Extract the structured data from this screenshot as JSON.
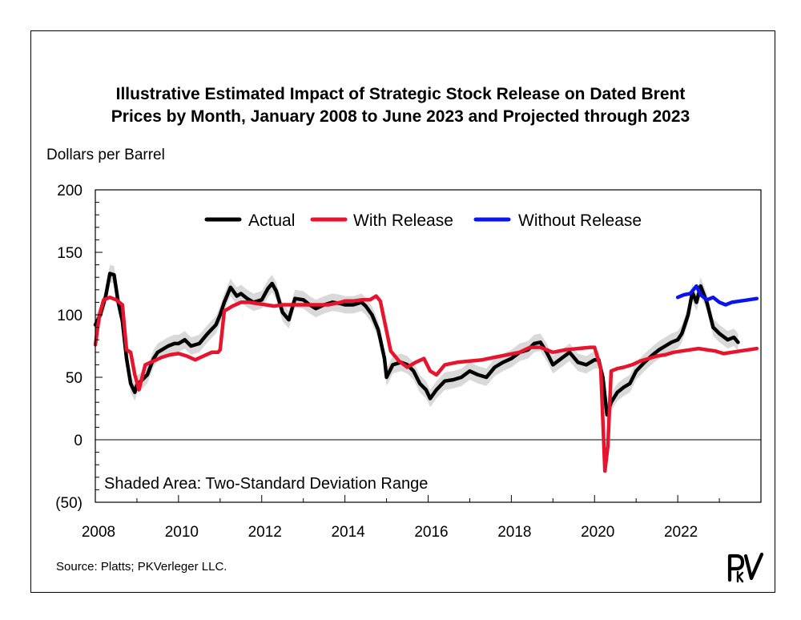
{
  "title_line1": "Illustrative Estimated Impact of Strategic Stock Release on Dated Brent",
  "title_line2": "Prices by Month, January 2008 to June 2023 and Projected through 2023",
  "source": "Source: Platts; PKVerleger LLC.",
  "logo_text": "PkV",
  "colors": {
    "actual": "#000000",
    "with_release": "#e8142e",
    "without_release": "#0a14ee",
    "band": "#d9d9d9"
  },
  "chart_data": {
    "type": "line",
    "ylabel": "Dollars per Barrel",
    "xlabel": "",
    "xlim": [
      2008.0,
      2024.0
    ],
    "ylim": [
      -50,
      200
    ],
    "y_ticks": [
      200,
      150,
      100,
      50,
      0,
      -50
    ],
    "y_tick_labels": [
      "200",
      "150",
      "100",
      "50",
      "0",
      "(50)"
    ],
    "x_ticks": [
      2008,
      2010,
      2012,
      2014,
      2016,
      2018,
      2020,
      2022
    ],
    "x_tick_labels": [
      "2008",
      "2010",
      "2012",
      "2014",
      "2016",
      "2018",
      "2020",
      "2022"
    ],
    "grid": false,
    "zero_line": true,
    "legend": {
      "placement": "top",
      "entries": [
        "Actual",
        "With Release",
        "Without Release"
      ]
    },
    "annotation": "Shaded Area: Two-Standard Deviation Range",
    "band_halfwidth": 7,
    "series": [
      {
        "name": "Actual",
        "x": [
          2008.0,
          2008.12,
          2008.25,
          2008.35,
          2008.45,
          2008.55,
          2008.65,
          2008.75,
          2008.85,
          2008.95,
          2009.0,
          2009.1,
          2009.25,
          2009.4,
          2009.5,
          2009.6,
          2009.75,
          2009.9,
          2010.0,
          2010.15,
          2010.3,
          2010.5,
          2010.7,
          2010.9,
          2011.0,
          2011.1,
          2011.25,
          2011.4,
          2011.5,
          2011.65,
          2011.8,
          2012.0,
          2012.15,
          2012.25,
          2012.35,
          2012.5,
          2012.65,
          2012.8,
          2013.0,
          2013.15,
          2013.3,
          2013.5,
          2013.7,
          2013.9,
          2014.0,
          2014.2,
          2014.4,
          2014.5,
          2014.65,
          2014.8,
          2014.95,
          2015.0,
          2015.15,
          2015.35,
          2015.5,
          2015.65,
          2015.8,
          2015.95,
          2016.05,
          2016.2,
          2016.4,
          2016.6,
          2016.8,
          2017.0,
          2017.2,
          2017.4,
          2017.6,
          2017.8,
          2018.0,
          2018.2,
          2018.4,
          2018.55,
          2018.7,
          2018.85,
          2019.0,
          2019.2,
          2019.4,
          2019.6,
          2019.8,
          2020.0,
          2020.1,
          2020.2,
          2020.3,
          2020.4,
          2020.55,
          2020.7,
          2020.85,
          2021.0,
          2021.2,
          2021.4,
          2021.55,
          2021.7,
          2021.85,
          2022.0,
          2022.1,
          2022.25,
          2022.35,
          2022.45,
          2022.55,
          2022.7,
          2022.85,
          2023.0,
          2023.2,
          2023.35,
          2023.45
        ],
        "y": [
          92,
          100,
          115,
          133,
          132,
          110,
          95,
          65,
          45,
          38,
          44,
          47,
          52,
          65,
          70,
          72,
          75,
          77,
          77,
          80,
          75,
          77,
          85,
          92,
          100,
          110,
          122,
          115,
          117,
          113,
          110,
          112,
          121,
          125,
          119,
          102,
          96,
          113,
          112,
          108,
          105,
          108,
          110,
          109,
          108,
          108,
          110,
          107,
          100,
          88,
          65,
          50,
          60,
          62,
          60,
          55,
          45,
          40,
          33,
          40,
          47,
          48,
          50,
          55,
          52,
          50,
          58,
          62,
          65,
          70,
          72,
          77,
          78,
          70,
          60,
          65,
          70,
          62,
          60,
          64,
          64,
          50,
          20,
          30,
          38,
          42,
          45,
          55,
          62,
          68,
          72,
          75,
          78,
          80,
          85,
          100,
          118,
          110,
          123,
          110,
          90,
          85,
          80,
          82,
          78
        ]
      },
      {
        "name": "With Release",
        "x": [
          2008.0,
          2008.1,
          2008.2,
          2008.35,
          2008.5,
          2008.65,
          2008.75,
          2008.85,
          2008.95,
          2009.05,
          2009.2,
          2009.4,
          2009.6,
          2009.8,
          2010.0,
          2010.2,
          2010.4,
          2010.6,
          2010.8,
          2010.95,
          2011.0,
          2011.1,
          2011.3,
          2011.5,
          2011.7,
          2011.9,
          2012.1,
          2012.3,
          2012.5,
          2012.8,
          2013.0,
          2013.3,
          2013.6,
          2013.9,
          2014.0,
          2014.2,
          2014.4,
          2014.6,
          2014.75,
          2014.85,
          2014.95,
          2015.1,
          2015.3,
          2015.5,
          2015.7,
          2015.9,
          2016.05,
          2016.2,
          2016.4,
          2016.7,
          2017.0,
          2017.3,
          2017.6,
          2017.9,
          2018.2,
          2018.45,
          2018.7,
          2019.0,
          2019.3,
          2019.6,
          2019.9,
          2020.0,
          2020.15,
          2020.25,
          2020.32,
          2020.4,
          2020.55,
          2020.7,
          2020.9,
          2021.1,
          2021.3,
          2021.5,
          2021.7,
          2021.9,
          2022.1,
          2022.3,
          2022.5,
          2022.7,
          2022.9,
          2023.1,
          2023.3,
          2023.5,
          2023.7,
          2023.9
        ],
        "y": [
          76,
          100,
          112,
          114,
          112,
          108,
          72,
          70,
          52,
          40,
          60,
          63,
          66,
          68,
          69,
          67,
          64,
          67,
          70,
          70,
          72,
          103,
          107,
          110,
          110,
          109,
          108,
          107,
          108,
          108,
          108,
          108,
          108,
          110,
          111,
          111,
          112,
          112,
          115,
          111,
          95,
          71,
          63,
          58,
          62,
          65,
          55,
          52,
          60,
          62,
          63,
          64,
          66,
          68,
          70,
          74,
          74,
          70,
          72,
          73,
          74,
          74,
          57,
          -25,
          -5,
          55,
          57,
          58,
          60,
          63,
          65,
          67,
          68,
          70,
          71,
          72,
          73,
          72,
          71,
          69,
          70,
          71,
          72,
          73
        ]
      },
      {
        "name": "Without Release",
        "x": [
          2022.0,
          2022.15,
          2022.3,
          2022.45,
          2022.55,
          2022.7,
          2022.85,
          2023.0,
          2023.15,
          2023.3,
          2023.5,
          2023.7,
          2023.9
        ],
        "y": [
          114,
          116,
          117,
          123,
          116,
          112,
          114,
          110,
          108,
          110,
          111,
          112,
          113
        ]
      }
    ]
  }
}
